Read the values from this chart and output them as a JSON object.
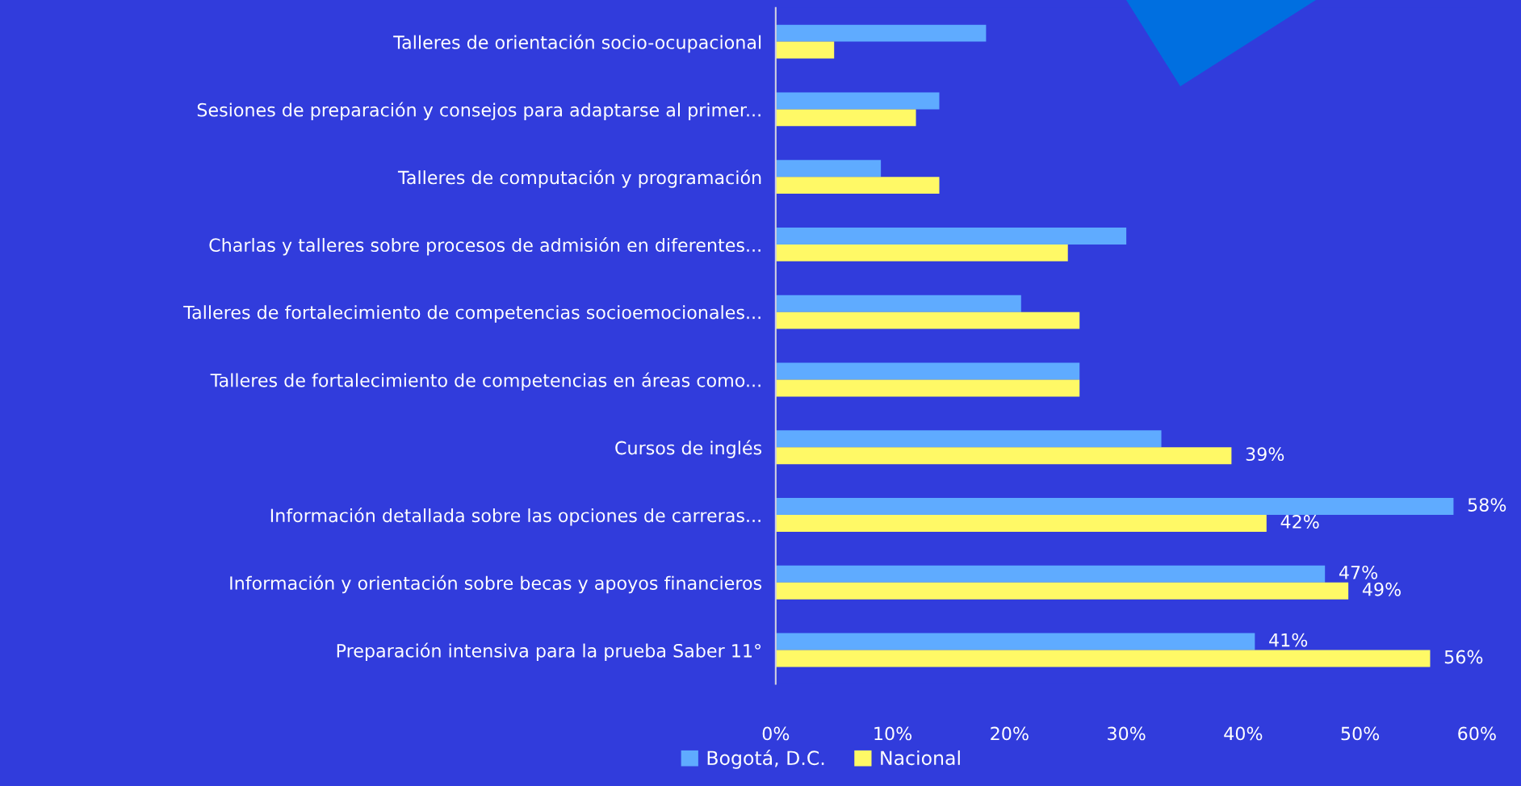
{
  "chart_data": {
    "type": "bar",
    "orientation": "horizontal",
    "categories": [
      "Talleres de orientación socio-ocupacional",
      "Sesiones de preparación y consejos para adaptarse al primer...",
      "Talleres de computación y programación",
      "Charlas y talleres sobre procesos de admisión en diferentes...",
      "Talleres de fortalecimiento de competencias socioemocionales...",
      "Talleres de fortalecimiento de competencias en áreas como...",
      "Cursos de inglés",
      "Información detallada sobre las opciones de carreras...",
      "Información y orientación sobre becas y apoyos financieros",
      "Preparación intensiva para la prueba Saber 11°"
    ],
    "series": [
      {
        "name": "Bogotá, D.C.",
        "color": "#5fabff",
        "values": [
          18,
          14,
          9,
          30,
          21,
          26,
          33,
          58,
          47,
          41
        ],
        "value_labels": [
          null,
          null,
          null,
          null,
          null,
          null,
          null,
          "58%",
          "47%",
          "41%"
        ]
      },
      {
        "name": "Nacional",
        "color": "#fff966",
        "values": [
          5,
          12,
          14,
          25,
          26,
          26,
          39,
          42,
          49,
          56
        ],
        "value_labels": [
          null,
          null,
          null,
          null,
          null,
          null,
          "39%",
          "42%",
          "49%",
          "56%"
        ]
      }
    ],
    "xlim": [
      0,
      60
    ],
    "xticks": [
      {
        "value": 0,
        "label": "0%"
      },
      {
        "value": 10,
        "label": "10%"
      },
      {
        "value": 20,
        "label": "20%"
      },
      {
        "value": 30,
        "label": "30%"
      },
      {
        "value": 40,
        "label": "40%"
      },
      {
        "value": 50,
        "label": "50%"
      },
      {
        "value": 60,
        "label": "60%"
      }
    ],
    "grid": false,
    "legend": "bottom"
  }
}
